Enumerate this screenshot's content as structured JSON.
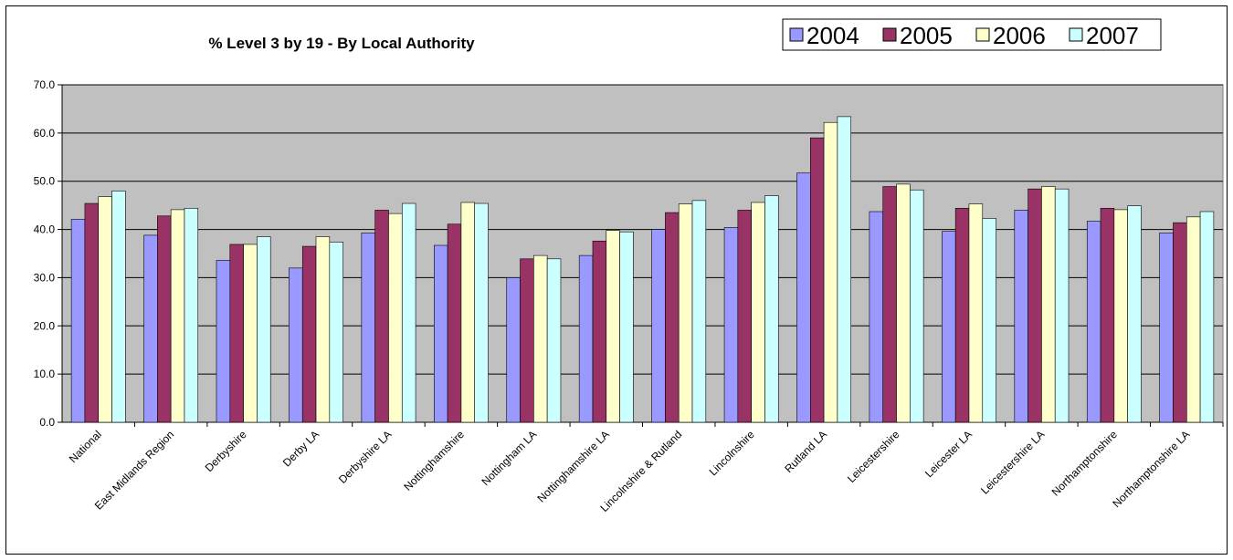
{
  "chart_data": {
    "type": "bar",
    "title": "% Level 3 by 19 - By Local Authority",
    "xlabel": "",
    "ylabel": "",
    "ylim": [
      0,
      70
    ],
    "yticks": [
      "0.0",
      "10.0",
      "20.0",
      "30.0",
      "40.0",
      "50.0",
      "60.0",
      "70.0"
    ],
    "grid": true,
    "legend_position": "top-right",
    "plot_background": "#c0c0c0",
    "categories": [
      "National",
      "East Midlands Region",
      "Derbyshire",
      "Derby LA",
      "Derbyshire LA",
      "Nottinghamshire",
      "Nottingham LA",
      "Nottinghamshire LA",
      "Lincolnshire & Rutland",
      "Lincolnshire",
      "Rutland LA",
      "Leicestershire",
      "Leicester LA",
      "Leicestershire LA",
      "Northamptonshire",
      "Northamptonshire LA"
    ],
    "series": [
      {
        "name": "2004",
        "color": "#9999ff",
        "values": [
          42.1,
          38.8,
          33.6,
          32.0,
          39.3,
          36.7,
          30.0,
          34.6,
          40.0,
          40.4,
          51.7,
          43.7,
          39.6,
          44.0,
          41.7,
          39.3
        ]
      },
      {
        "name": "2005",
        "color": "#993366",
        "values": [
          45.4,
          42.8,
          36.9,
          36.5,
          44.0,
          41.1,
          33.9,
          37.6,
          43.5,
          44.0,
          59.0,
          48.9,
          44.4,
          48.4,
          44.4,
          41.4
        ]
      },
      {
        "name": "2006",
        "color": "#ffffcc",
        "values": [
          46.8,
          44.1,
          36.9,
          38.5,
          43.3,
          45.6,
          34.6,
          39.8,
          45.3,
          45.6,
          62.2,
          49.4,
          45.3,
          48.9,
          44.1,
          42.6
        ]
      },
      {
        "name": "2007",
        "color": "#ccffff",
        "values": [
          48.0,
          44.4,
          38.5,
          37.4,
          45.4,
          45.4,
          33.9,
          39.5,
          46.0,
          47.0,
          63.4,
          48.2,
          42.3,
          48.4,
          44.9,
          43.7
        ]
      }
    ]
  }
}
